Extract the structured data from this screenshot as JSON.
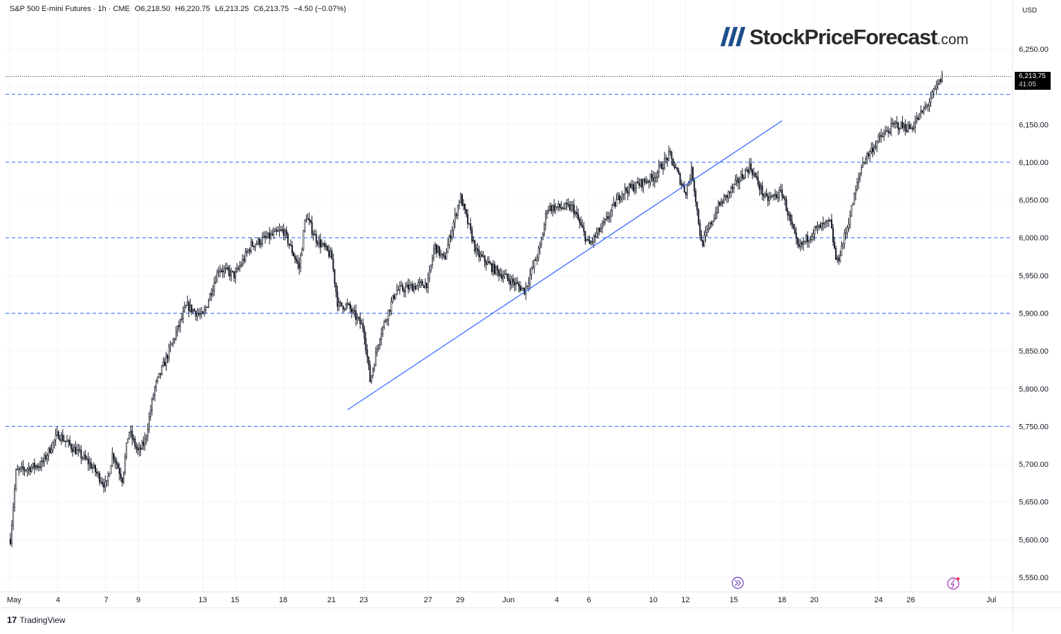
{
  "header": {
    "symbol": "S&P 500 E-mini Futures · 1h · CME",
    "open": "O6,218.50",
    "high": "H6,220.75",
    "low": "L6,213.25",
    "close": "C6,213.75",
    "change": "−4.50 (−0.07%)"
  },
  "watermark": {
    "brand": "StockPriceForecast",
    "tld": ".com"
  },
  "footer": {
    "brand": "TradingView",
    "brand_mark": "17"
  },
  "price_axis": {
    "currency": "USD",
    "ticks": [
      "6,250.00",
      "6,200.00",
      "6,150.00",
      "6,100.00",
      "6,050.00",
      "6,000.00",
      "5,950.00",
      "5,900.00",
      "5,850.00",
      "5,800.00",
      "5,750.00",
      "5,700.00",
      "5,650.00",
      "5,600.00",
      "5,550.00"
    ]
  },
  "last_price": {
    "price": "6,213.75",
    "countdown": "41:05"
  },
  "time_axis": {
    "labels": [
      "May",
      "4",
      "7",
      "9",
      "13",
      "15",
      "18",
      "21",
      "23",
      "27",
      "29",
      "Jun",
      "4",
      "6",
      "10",
      "12",
      "15",
      "18",
      "20",
      "24",
      "26",
      "Jul"
    ]
  },
  "colors": {
    "candle": "#131722",
    "support": "#2962ff",
    "trendline": "#2962ff",
    "price_line": "#131722"
  },
  "icons": {
    "event_badge": "double-chevron-right-icon",
    "alert_badge": "lightning-icon"
  },
  "chart_data": {
    "type": "candlestick",
    "timeframe": "1h",
    "ylim": [
      5530,
      6275
    ],
    "support_levels": [
      5750,
      5900,
      6000,
      6100,
      6190
    ],
    "trendline": [
      {
        "date": "2025-05-22",
        "price": 5772
      },
      {
        "date": "2025-06-18",
        "price": 6155
      }
    ],
    "path_anchors": [
      {
        "date": "2025-05-01",
        "price": 5590
      },
      {
        "date": "2025-05-01",
        "price": 5690
      },
      {
        "date": "2025-05-03",
        "price": 5700
      },
      {
        "date": "2025-05-04",
        "price": 5740
      },
      {
        "date": "2025-05-05",
        "price": 5720
      },
      {
        "date": "2025-05-06",
        "price": 5700
      },
      {
        "date": "2025-05-07",
        "price": 5670
      },
      {
        "date": "2025-05-07",
        "price": 5715
      },
      {
        "date": "2025-05-08",
        "price": 5680
      },
      {
        "date": "2025-05-08",
        "price": 5745
      },
      {
        "date": "2025-05-09",
        "price": 5715
      },
      {
        "date": "2025-05-09",
        "price": 5730
      },
      {
        "date": "2025-05-10",
        "price": 5800
      },
      {
        "date": "2025-05-12",
        "price": 5910
      },
      {
        "date": "2025-05-13",
        "price": 5895
      },
      {
        "date": "2025-05-14",
        "price": 5960
      },
      {
        "date": "2025-05-15",
        "price": 5950
      },
      {
        "date": "2025-05-16",
        "price": 5990
      },
      {
        "date": "2025-05-18",
        "price": 6010
      },
      {
        "date": "2025-05-19",
        "price": 5960
      },
      {
        "date": "2025-05-19",
        "price": 6030
      },
      {
        "date": "2025-05-20",
        "price": 6000
      },
      {
        "date": "2025-05-21",
        "price": 5975
      },
      {
        "date": "2025-05-21",
        "price": 5910
      },
      {
        "date": "2025-05-22",
        "price": 5910
      },
      {
        "date": "2025-05-23",
        "price": 5880
      },
      {
        "date": "2025-05-23",
        "price": 5810
      },
      {
        "date": "2025-05-24",
        "price": 5870
      },
      {
        "date": "2025-05-25",
        "price": 5930
      },
      {
        "date": "2025-05-27",
        "price": 5940
      },
      {
        "date": "2025-05-27",
        "price": 5990
      },
      {
        "date": "2025-05-28",
        "price": 5970
      },
      {
        "date": "2025-05-29",
        "price": 6055
      },
      {
        "date": "2025-05-30",
        "price": 5980
      },
      {
        "date": "2025-05-31",
        "price": 5960
      },
      {
        "date": "2025-06-01",
        "price": 5945
      },
      {
        "date": "2025-06-02",
        "price": 5930
      },
      {
        "date": "2025-06-03",
        "price": 5990
      },
      {
        "date": "2025-06-03",
        "price": 6040
      },
      {
        "date": "2025-06-05",
        "price": 6040
      },
      {
        "date": "2025-06-06",
        "price": 5990
      },
      {
        "date": "2025-06-07",
        "price": 6020
      },
      {
        "date": "2025-06-08",
        "price": 6060
      },
      {
        "date": "2025-06-09",
        "price": 6070
      },
      {
        "date": "2025-06-10",
        "price": 6080
      },
      {
        "date": "2025-06-11",
        "price": 6110
      },
      {
        "date": "2025-06-12",
        "price": 6060
      },
      {
        "date": "2025-06-12",
        "price": 6090
      },
      {
        "date": "2025-06-13",
        "price": 5990
      },
      {
        "date": "2025-06-14",
        "price": 6040
      },
      {
        "date": "2025-06-16",
        "price": 6095
      },
      {
        "date": "2025-06-17",
        "price": 6050
      },
      {
        "date": "2025-06-18",
        "price": 6060
      },
      {
        "date": "2025-06-19",
        "price": 5985
      },
      {
        "date": "2025-06-20",
        "price": 6010
      },
      {
        "date": "2025-06-21",
        "price": 6020
      },
      {
        "date": "2025-06-21",
        "price": 5965
      },
      {
        "date": "2025-06-22",
        "price": 6010
      },
      {
        "date": "2025-06-23",
        "price": 6100
      },
      {
        "date": "2025-06-24",
        "price": 6130
      },
      {
        "date": "2025-06-25",
        "price": 6150
      },
      {
        "date": "2025-06-26",
        "price": 6145
      },
      {
        "date": "2025-06-27",
        "price": 6175
      },
      {
        "date": "2025-06-28",
        "price": 6215
      }
    ]
  }
}
